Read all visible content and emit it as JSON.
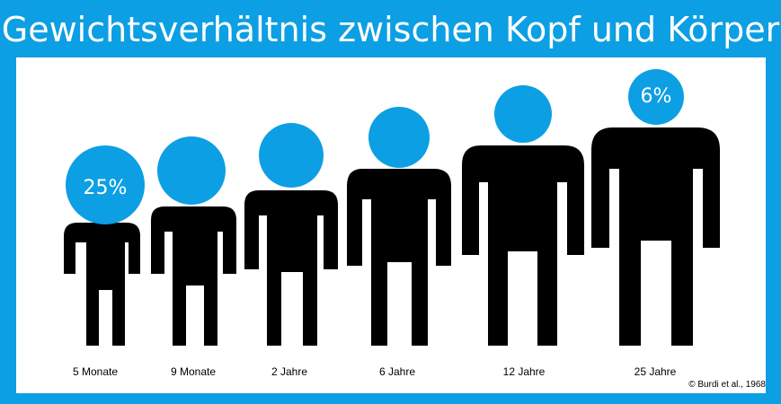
{
  "title": "Gewichtsverhältnis zwischen Kopf und Körper",
  "colors": {
    "frame": "#0d9fe3",
    "head": "#0d9fe3",
    "body": "#000000",
    "background": "#ffffff"
  },
  "figures": [
    {
      "age": "5 Monate",
      "head_percent": "25%"
    },
    {
      "age": "9 Monate",
      "head_percent": ""
    },
    {
      "age": "2 Jahre",
      "head_percent": ""
    },
    {
      "age": "6 Jahre",
      "head_percent": ""
    },
    {
      "age": "12 Jahre",
      "head_percent": ""
    },
    {
      "age": "25 Jahre",
      "head_percent": "6%"
    }
  ],
  "source": "© Burdi et al., 1968"
}
